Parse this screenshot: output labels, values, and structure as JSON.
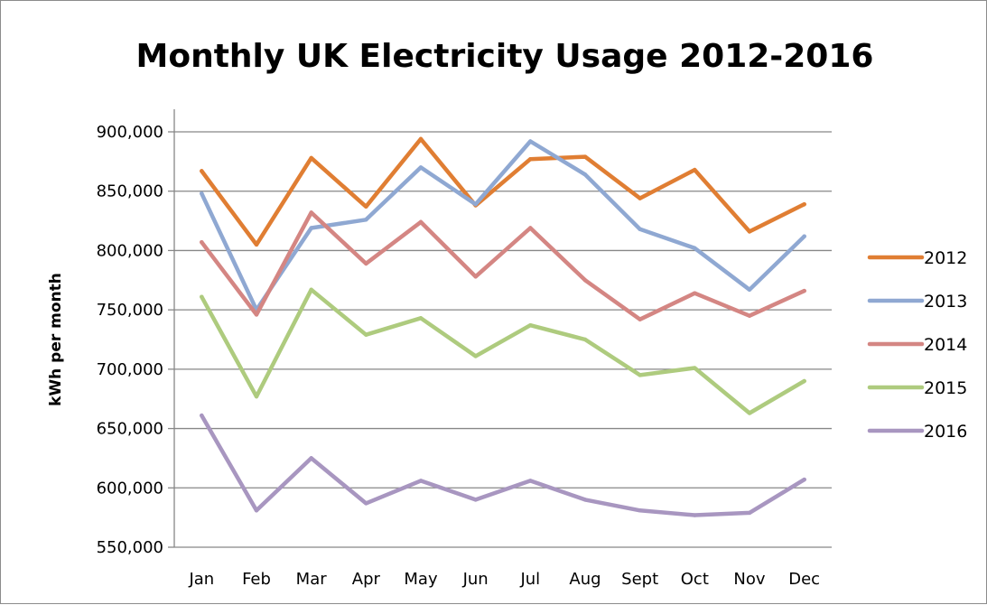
{
  "chart_data": {
    "type": "line",
    "title": "Monthly UK Electricity Usage 2012-2016",
    "xlabel": "",
    "ylabel": "kWh per month",
    "ylim": [
      550000,
      900000
    ],
    "yticks": [
      550000,
      600000,
      650000,
      700000,
      750000,
      800000,
      850000,
      900000
    ],
    "ytick_labels": [
      "550,000",
      "600,000",
      "650,000",
      "700,000",
      "750,000",
      "800,000",
      "850,000",
      "900,000"
    ],
    "categories": [
      "Jan",
      "Feb",
      "Mar",
      "Apr",
      "May",
      "Jun",
      "Jul",
      "Aug",
      "Sept",
      "Oct",
      "Nov",
      "Dec"
    ],
    "grid": true,
    "legend_position": "right",
    "series": [
      {
        "name": "2012",
        "color": "#E07E33",
        "values": [
          867000,
          805000,
          878000,
          837000,
          894000,
          838000,
          877000,
          879000,
          844000,
          868000,
          816000,
          839000
        ]
      },
      {
        "name": "2013",
        "color": "#8FA8D2",
        "values": [
          848000,
          750000,
          819000,
          826000,
          870000,
          839000,
          892000,
          864000,
          818000,
          802000,
          767000,
          812000
        ]
      },
      {
        "name": "2014",
        "color": "#D48683",
        "values": [
          807000,
          746000,
          832000,
          789000,
          824000,
          778000,
          819000,
          775000,
          742000,
          764000,
          745000,
          766000
        ]
      },
      {
        "name": "2015",
        "color": "#AECB7E",
        "values": [
          761000,
          677000,
          767000,
          729000,
          743000,
          711000,
          737000,
          725000,
          695000,
          701000,
          663000,
          690000
        ]
      },
      {
        "name": "2016",
        "color": "#A896C0",
        "values": [
          661000,
          581000,
          625000,
          587000,
          606000,
          590000,
          606000,
          590000,
          581000,
          577000,
          579000,
          607000
        ]
      }
    ]
  }
}
